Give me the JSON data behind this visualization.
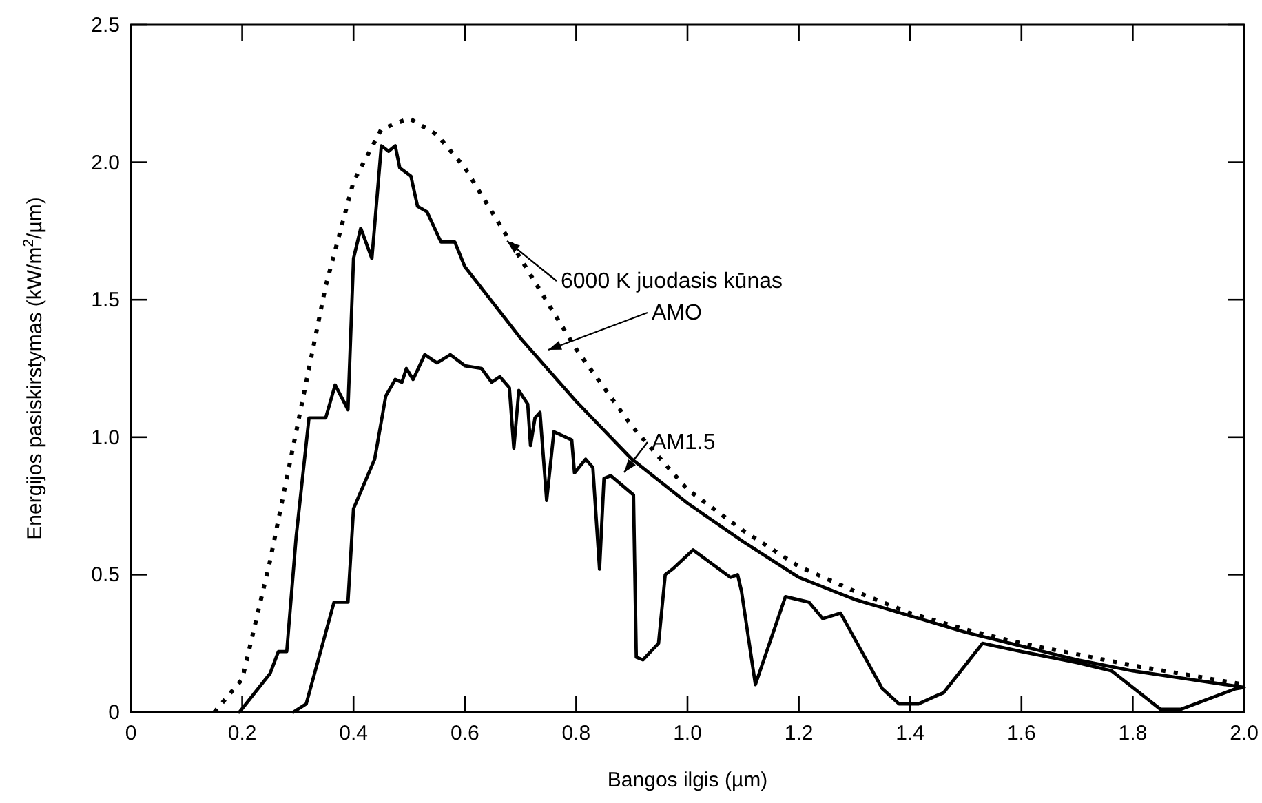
{
  "chart_data": {
    "type": "line",
    "xlabel": "Bangos ilgis (µm)",
    "ylabel": "Energijos pasiskirstymas (kW/m$^{2}$/µm)",
    "xlim": [
      0,
      2.0
    ],
    "ylim": [
      0,
      2.5
    ],
    "xticks": [
      0,
      0.2,
      0.4,
      0.6,
      0.8,
      {
        "value": 1.0,
        "label": "1.0"
      },
      1.2,
      1.4,
      1.6,
      1.8,
      {
        "value": 2.0,
        "label": "2.0"
      }
    ],
    "yticks": [
      0,
      0.5,
      {
        "value": 1.0,
        "label": "1.0"
      },
      1.5,
      {
        "value": 2.0,
        "label": "2.0"
      },
      2.5
    ],
    "grid": false,
    "marker": "none",
    "series": [
      {
        "color": "#000000",
        "line_style": "dotted",
        "x": [
          0.15,
          0.2,
          0.25,
          0.3,
          0.35,
          0.4,
          0.45,
          0.5,
          0.55,
          0.6,
          0.7,
          0.8,
          0.9,
          1.0,
          1.1,
          1.2,
          1.3,
          1.4,
          1.5,
          1.6,
          1.8,
          2.0
        ],
        "values": [
          0,
          0.12,
          0.55,
          1.05,
          1.55,
          1.93,
          2.12,
          2.16,
          2.1,
          1.98,
          1.65,
          1.32,
          1.04,
          0.81,
          0.66,
          0.53,
          0.44,
          0.36,
          0.3,
          0.25,
          0.17,
          0.1
        ]
      },
      {
        "color": "#000000",
        "line_style": "solid",
        "x": [
          0.195,
          0.25,
          0.265,
          0.28,
          0.297,
          0.32,
          0.35,
          0.367,
          0.39,
          0.4,
          0.413,
          0.433,
          0.45,
          0.463,
          0.475,
          0.483,
          0.503,
          0.515,
          0.532,
          0.557,
          0.582,
          0.6,
          0.7,
          0.8,
          0.9,
          1.0,
          1.1,
          1.2,
          1.3,
          1.4,
          1.5,
          1.6,
          1.7,
          1.8,
          1.9,
          2.0
        ],
        "values": [
          0,
          0.14,
          0.22,
          0.22,
          0.64,
          1.07,
          1.07,
          1.19,
          1.1,
          1.65,
          1.76,
          1.65,
          2.06,
          2.04,
          2.06,
          1.98,
          1.95,
          1.84,
          1.82,
          1.71,
          1.71,
          1.62,
          1.36,
          1.13,
          0.92,
          0.76,
          0.62,
          0.49,
          0.41,
          0.35,
          0.29,
          0.24,
          0.19,
          0.15,
          0.12,
          0.09
        ]
      },
      {
        "color": "#000000",
        "line_style": "solid",
        "x": [
          0.292,
          0.315,
          0.365,
          0.39,
          0.4,
          0.438,
          0.458,
          0.475,
          0.487,
          0.495,
          0.507,
          0.528,
          0.55,
          0.574,
          0.6,
          0.63,
          0.648,
          0.663,
          0.68,
          0.688,
          0.697,
          0.713,
          0.718,
          0.726,
          0.735,
          0.747,
          0.76,
          0.792,
          0.797,
          0.817,
          0.83,
          0.842,
          0.85,
          0.862,
          0.903,
          0.908,
          0.92,
          0.948,
          0.96,
          0.973,
          1.01,
          1.077,
          1.09,
          1.097,
          1.122,
          1.176,
          1.218,
          1.243,
          1.275,
          1.35,
          1.38,
          1.415,
          1.448,
          1.46,
          1.53,
          1.6,
          1.7,
          1.762,
          1.85,
          1.886,
          1.985,
          2.0
        ],
        "values": [
          0,
          0.03,
          0.4,
          0.4,
          0.74,
          0.92,
          1.15,
          1.21,
          1.2,
          1.25,
          1.21,
          1.3,
          1.27,
          1.3,
          1.26,
          1.25,
          1.2,
          1.22,
          1.18,
          0.96,
          1.17,
          1.12,
          0.97,
          1.07,
          1.09,
          0.77,
          1.02,
          0.99,
          0.87,
          0.92,
          0.89,
          0.52,
          0.85,
          0.86,
          0.79,
          0.2,
          0.19,
          0.25,
          0.5,
          0.52,
          0.59,
          0.49,
          0.5,
          0.44,
          0.1,
          0.42,
          0.4,
          0.34,
          0.36,
          0.085,
          0.03,
          0.03,
          0.06,
          0.07,
          0.25,
          0.22,
          0.18,
          0.15,
          0.01,
          0.01,
          0.085,
          0.09
        ]
      }
    ],
    "annotations": [
      "6000 K juodasis kūnas",
      "AMO",
      "AM1.5"
    ]
  }
}
